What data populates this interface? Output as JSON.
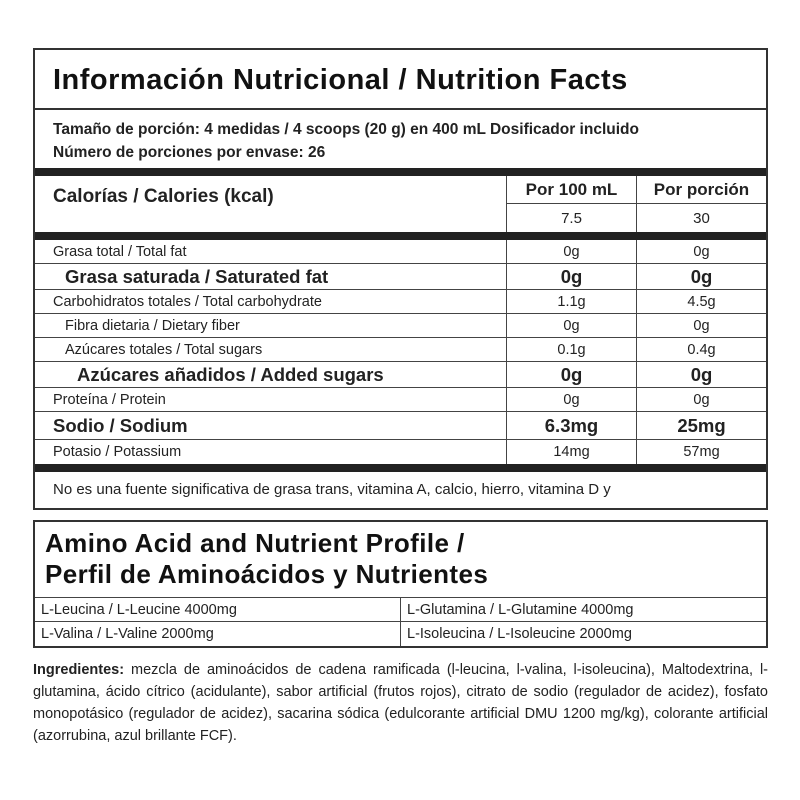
{
  "nutrition": {
    "title": "Información Nutricional / Nutrition Facts",
    "serving_size": "Tamaño de porción: 4 medidas / 4 scoops (20 g) en 400 mL Dosificador incluido",
    "servings_per_container": "Número de porciones por envase: 26",
    "calories_label": "Calorías / Calories (kcal)",
    "col_per100": "Por 100 mL",
    "col_perserving": "Por porción",
    "calories_per100": "7.5",
    "calories_perserving": "30",
    "rows": [
      {
        "label": "Grasa total / Total fat",
        "per100": "0g",
        "serving": "0g"
      },
      {
        "label": "Grasa saturada / Saturated fat",
        "per100": "0g",
        "serving": "0g"
      },
      {
        "label": "Carbohidratos totales / Total carbohydrate",
        "per100": "1.1g",
        "serving": "4.5g"
      },
      {
        "label": "Fibra dietaria / Dietary fiber",
        "per100": "0g",
        "serving": "0g"
      },
      {
        "label": "Azúcares totales / Total sugars",
        "per100": "0.1g",
        "serving": "0.4g"
      },
      {
        "label": "Azúcares añadidos / Added sugars",
        "per100": "0g",
        "serving": "0g"
      },
      {
        "label": "Proteína / Protein",
        "per100": "0g",
        "serving": "0g"
      },
      {
        "label": "Sodio / Sodium",
        "per100": "6.3mg",
        "serving": "25mg"
      },
      {
        "label": "Potasio / Potassium",
        "per100": "14mg",
        "serving": "57mg"
      }
    ],
    "note": "No es una fuente significativa de grasa trans, vitamina A, calcio, hierro, vitamina D y"
  },
  "amino": {
    "title_line1": "Amino Acid and Nutrient Profile /",
    "title_line2": "Perfil de Aminoácidos y Nutrientes",
    "items": [
      "L-Leucina / L-Leucine 4000mg",
      "L-Glutamina / L-Glutamine  4000mg",
      "L-Valina / L-Valine 2000mg",
      "L-Isoleucina / L-Isoleucine  2000mg"
    ]
  },
  "ingredients": {
    "label": "Ingredientes:",
    "text": " mezcla de aminoácidos de cadena ramificada (l-leucina, l-valina, l-isoleucina), Maltodextrina, l-glutamina, ácido cítrico (acidulante), sabor artificial (frutos rojos), citrato de sodio (regulador de acidez), fosfato monopotásico (regulador de acidez), sacarina sódica (edulcorante artificial DMU 1200 mg/kg), colorante artificial (azorrubina, azul brillante FCF)."
  }
}
